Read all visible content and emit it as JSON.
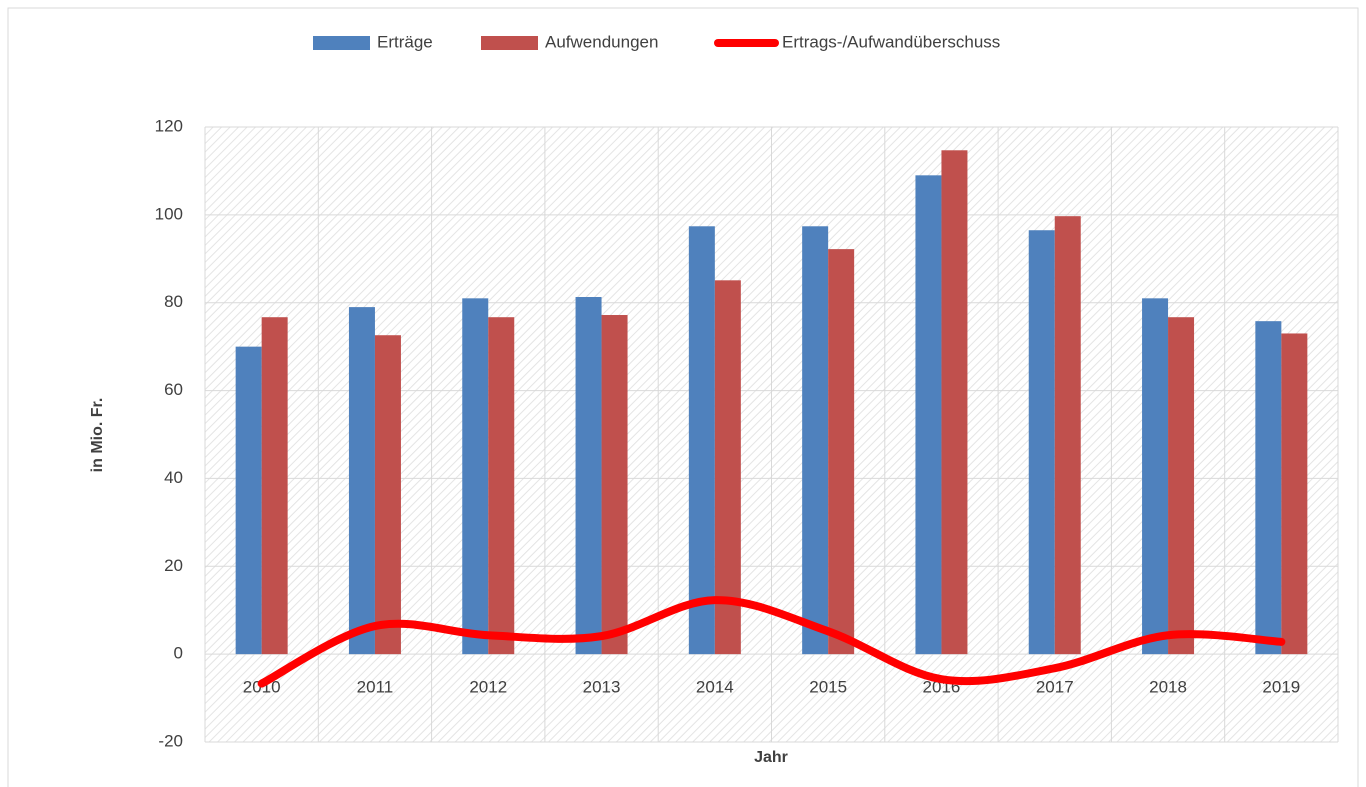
{
  "chart_data": {
    "type": "bar",
    "categories": [
      "2010",
      "2011",
      "2012",
      "2013",
      "2014",
      "2015",
      "2016",
      "2017",
      "2018",
      "2019"
    ],
    "series": [
      {
        "name": "Erträge",
        "color": "#4f81bd",
        "type": "bar",
        "values": [
          70,
          79,
          81,
          81.3,
          97.4,
          97.4,
          109,
          96.5,
          81,
          75.8
        ]
      },
      {
        "name": "Aufwendungen",
        "color": "#c0504d",
        "type": "bar",
        "values": [
          76.7,
          72.6,
          76.7,
          77.2,
          85.1,
          92.2,
          114.7,
          99.7,
          76.7,
          73
        ]
      },
      {
        "name": "Ertrags-/Aufwandüberschuss",
        "color": "#ff0000",
        "type": "line",
        "values": [
          -6.7,
          6.4,
          4.3,
          4.1,
          12.3,
          5.2,
          -5.7,
          -3.2,
          4.3,
          2.8
        ]
      }
    ],
    "xlabel": "Jahr",
    "ylabel": "in Mio. Fr.",
    "ylim": [
      -20,
      120
    ],
    "yticks": [
      -20,
      0,
      20,
      40,
      60,
      80,
      100,
      120
    ],
    "grid": true,
    "legend": "top"
  }
}
